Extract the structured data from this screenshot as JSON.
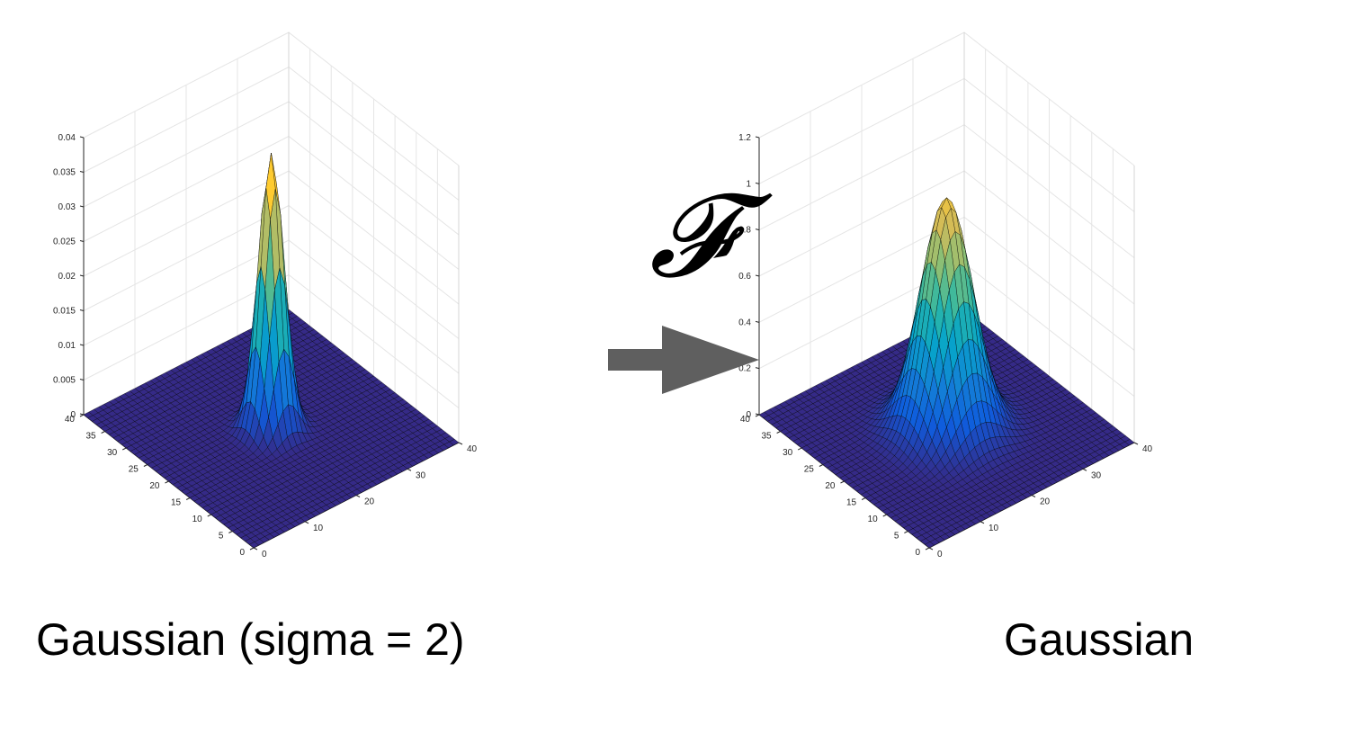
{
  "panels": [
    {
      "caption": "Gaussian (sigma = 2)",
      "chart_data": {
        "type": "surface",
        "title": "",
        "surface": {
          "function": "gaussian",
          "center": [
            20,
            20
          ],
          "sigma": 2,
          "amplitude": 0.0398,
          "grid_step": 1
        },
        "x": {
          "min": 0,
          "max": 40,
          "ticks": [
            0,
            10,
            20,
            30,
            40
          ]
        },
        "y": {
          "min": 0,
          "max": 40,
          "ticks": [
            0,
            5,
            10,
            15,
            20,
            25,
            30,
            35,
            40
          ]
        },
        "z": {
          "min": 0,
          "max": 0.04,
          "ticks": [
            0,
            0.005,
            0.01,
            0.015,
            0.02,
            0.025,
            0.03,
            0.035,
            0.04
          ]
        },
        "grid": true,
        "colormap": "parula"
      }
    },
    {
      "caption": "Gaussian",
      "chart_data": {
        "type": "surface",
        "title": "",
        "surface": {
          "function": "gaussian",
          "center": [
            20,
            20
          ],
          "sigma": 4,
          "amplitude": 1.0,
          "grid_step": 1
        },
        "x": {
          "min": 0,
          "max": 40,
          "ticks": [
            0,
            10,
            20,
            30,
            40
          ]
        },
        "y": {
          "min": 0,
          "max": 40,
          "ticks": [
            0,
            5,
            10,
            15,
            20,
            25,
            30,
            35,
            40
          ]
        },
        "z": {
          "min": 0,
          "max": 1.2,
          "ticks": [
            0,
            0.2,
            0.4,
            0.6,
            0.8,
            1,
            1.2
          ]
        },
        "grid": true,
        "colormap": "parula"
      }
    }
  ],
  "transform": {
    "symbol": "𝓕",
    "arrow_color": "#5f5f5f"
  },
  "colors": {
    "parula": [
      "#352a87",
      "#0f5cdd",
      "#1481d6",
      "#06a4ca",
      "#2eb7a4",
      "#87bf77",
      "#d1bb59",
      "#fec832",
      "#f9fb0e"
    ]
  }
}
